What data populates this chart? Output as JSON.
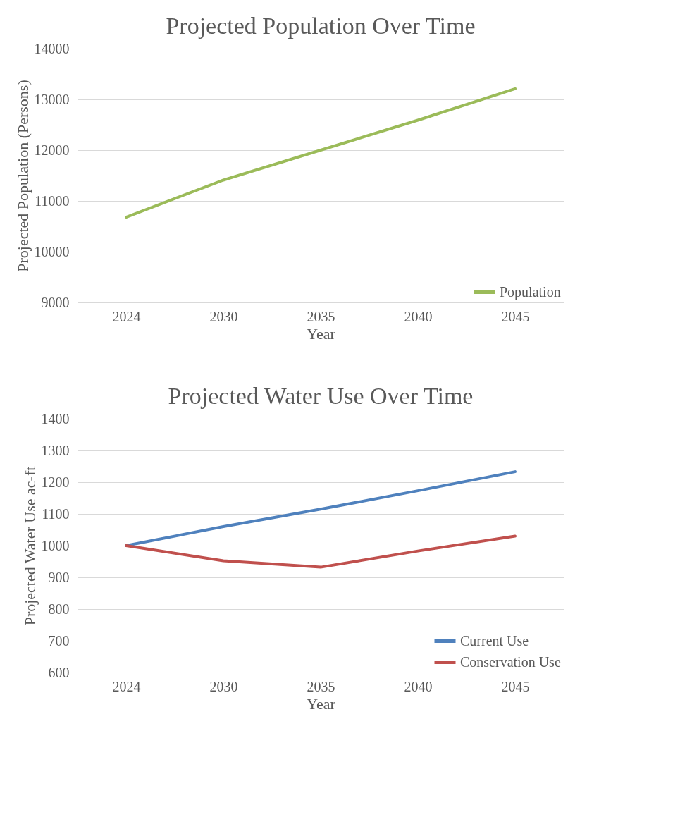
{
  "chart_data": [
    {
      "type": "line",
      "title": "Projected Population Over Time",
      "xlabel": "Year",
      "ylabel": "Projected Population (Persons)",
      "categories": [
        "2024",
        "2030",
        "2035",
        "2040",
        "2045"
      ],
      "series": [
        {
          "name": "Population",
          "color": "#9bbb59",
          "values": [
            10680,
            11410,
            12000,
            12590,
            13210
          ]
        }
      ],
      "ylim": [
        9000,
        14000
      ],
      "yticks": [
        9000,
        10000,
        11000,
        12000,
        13000,
        14000
      ],
      "grid": "y",
      "legend": "bottom right",
      "marker": "none",
      "line_style": "solid"
    },
    {
      "type": "line",
      "title": "Projected Water Use Over Time",
      "xlabel": "Year",
      "ylabel": "Projected Water Use ac-ft",
      "categories": [
        "2024",
        "2030",
        "2035",
        "2040",
        "2045"
      ],
      "series": [
        {
          "name": "Current Use",
          "color": "#4f81bd",
          "values": [
            1000,
            1060,
            1115,
            1173,
            1233
          ]
        },
        {
          "name": "Conservation Use",
          "color": "#c0504d",
          "values": [
            1000,
            952,
            932,
            983,
            1030
          ]
        }
      ],
      "ylim": [
        600,
        1400
      ],
      "yticks": [
        600,
        700,
        800,
        900,
        1000,
        1100,
        1200,
        1300,
        1400
      ],
      "grid": "y",
      "legend": "bottom right",
      "marker": "none",
      "line_style": "solid"
    }
  ]
}
